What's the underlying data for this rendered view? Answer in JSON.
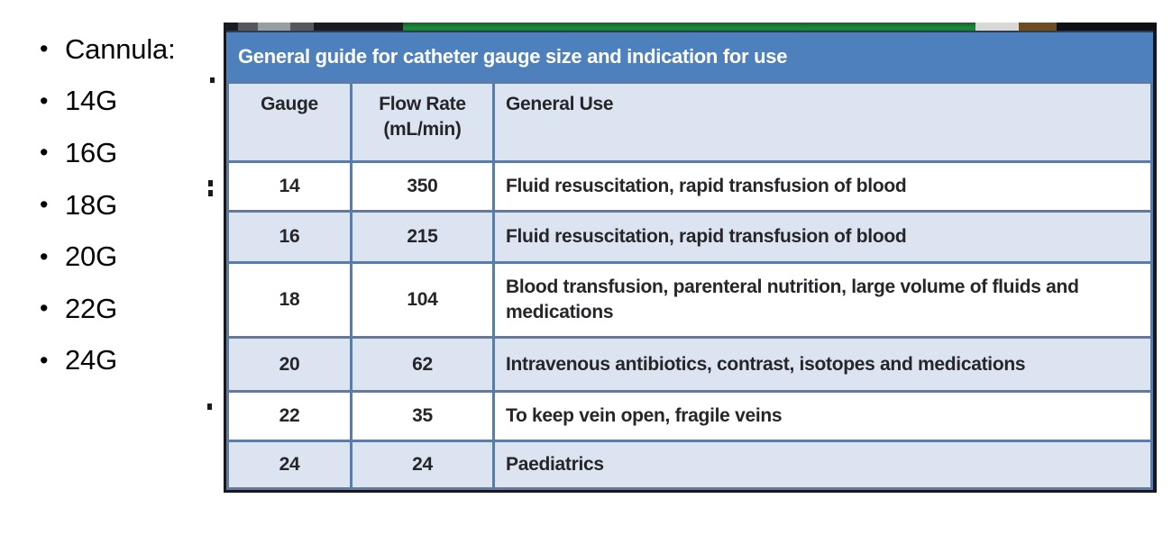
{
  "slide": {
    "bullets": {
      "glyph": "•",
      "items": [
        "Cannula:",
        "14G",
        "16G",
        "18G",
        "20G",
        "22G",
        "24G"
      ]
    },
    "table": {
      "title": "General guide for catheter gauge size and indication for use",
      "columns": [
        "Gauge",
        "Flow Rate (mL/min)",
        "General Use"
      ],
      "rows": [
        {
          "gauge": "14",
          "flow_rate": "350",
          "general_use": "Fluid resuscitation, rapid transfusion of blood"
        },
        {
          "gauge": "16",
          "flow_rate": "215",
          "general_use": "Fluid resuscitation, rapid transfusion of blood"
        },
        {
          "gauge": "18",
          "flow_rate": "104",
          "general_use": "Blood transfusion, parenteral nutrition, large volume of fluids and medications"
        },
        {
          "gauge": "20",
          "flow_rate": "62",
          "general_use": "Intravenous antibiotics, contrast, isotopes and medications"
        },
        {
          "gauge": "22",
          "flow_rate": "35",
          "general_use": "To keep vein open, fragile veins"
        },
        {
          "gauge": "24",
          "flow_rate": "24",
          "general_use": "Paediatrics"
        }
      ]
    },
    "colors": {
      "title_bar_blue": "#4e80bd",
      "row_alt_blue": "#dbe4f0",
      "grid_border_blue": "#5e7ba6",
      "outer_frame_dark": "#17181e",
      "strip_green": "#1d8c3c",
      "strip_brown": "#6f4b1d",
      "strip_light_gray": "#d8d8d6",
      "bullet_text_black": "#060606"
    }
  }
}
